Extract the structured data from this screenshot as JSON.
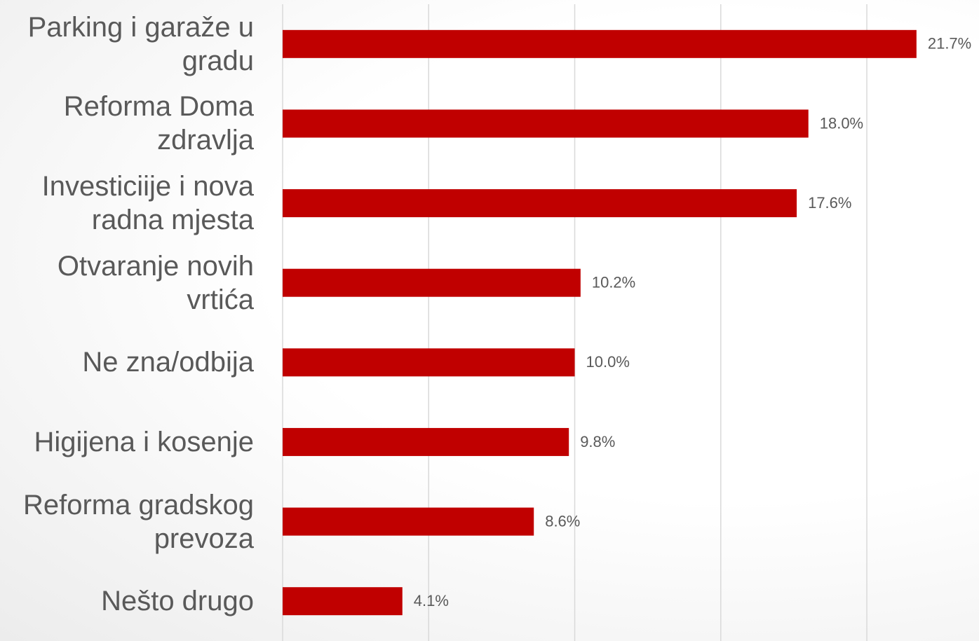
{
  "chart_data": {
    "type": "bar",
    "orientation": "horizontal",
    "categories": [
      "Parking i garaže u gradu",
      "Reforma Doma zdravlja",
      "Investiciije i nova radna mjesta",
      "Otvaranje novih vrtića",
      "Ne zna/odbija",
      "Higijena i kosenje",
      "Reforma gradskog prevoza",
      "Nešto drugo"
    ],
    "values": [
      21.7,
      18.0,
      17.6,
      10.2,
      10.0,
      9.8,
      8.6,
      4.1
    ],
    "value_labels": [
      "21.7%",
      "18.0%",
      "17.6%",
      "10.2%",
      "10.0%",
      "9.8%",
      "8.6%",
      "4.1%"
    ],
    "color": "#c00000",
    "xlim": [
      0,
      23
    ],
    "xticks": [
      0,
      5,
      10,
      15,
      20
    ],
    "grid": true
  }
}
